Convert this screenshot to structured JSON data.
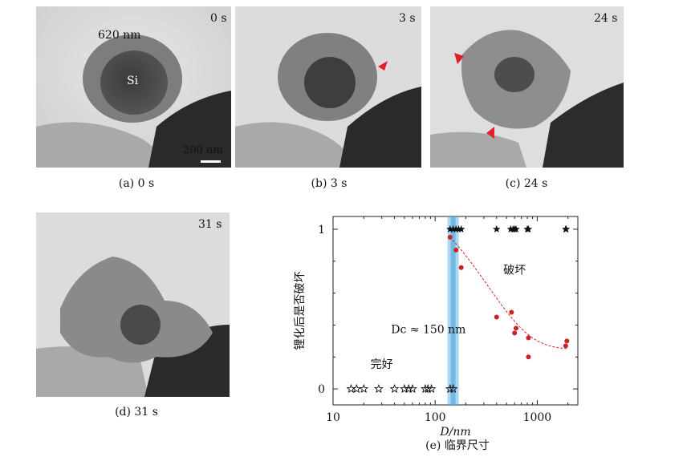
{
  "panels": {
    "a": {
      "time": "0 s",
      "caption": "(a) 0 s",
      "size_label": "620 nm",
      "material_label": "Si",
      "scale_label": "200 nm"
    },
    "b": {
      "time": "3 s",
      "caption": "(b) 3 s"
    },
    "c": {
      "time": "24 s",
      "caption": "(c) 24 s"
    },
    "d": {
      "time": "31 s",
      "caption": "(d) 31 s"
    }
  },
  "colors": {
    "arrow": "#e0202a",
    "fit_points": "#cc2222",
    "critical_band": "#4aa6e0"
  },
  "chart_data": {
    "type": "scatter",
    "caption": "(e) 临界尺寸",
    "xlabel": "D/nm",
    "ylabel": "锂化后是否破坏",
    "x_scale": "log",
    "xlim": [
      10,
      2500
    ],
    "ylim": [
      -0.1,
      1.08
    ],
    "xticks": [
      10,
      100,
      1000
    ],
    "xtick_labels": [
      "10",
      "100",
      "1000"
    ],
    "yticks": [
      0,
      1
    ],
    "ytick_labels": [
      "0",
      "1"
    ],
    "grid": false,
    "critical_size": 150,
    "critical_label": "Dc ≈ 150 nm",
    "region_labels": {
      "fractured": "破坏",
      "intact": "完好"
    },
    "series": [
      {
        "name": "破坏",
        "marker": "filled-star",
        "x": [
          140,
          150,
          160,
          170,
          180,
          400,
          550,
          580,
          600,
          620,
          800,
          820,
          1900,
          1920
        ],
        "y": [
          1,
          1,
          1,
          1,
          1,
          1,
          1,
          1,
          1,
          1,
          1,
          1,
          1,
          1
        ]
      },
      {
        "name": "完好",
        "marker": "open-star",
        "x": [
          15,
          17,
          20,
          28,
          40,
          50,
          55,
          60,
          80,
          85,
          92,
          140,
          150
        ],
        "y": [
          0,
          0,
          0,
          0,
          0,
          0,
          0,
          0,
          0,
          0,
          0,
          0,
          0
        ]
      },
      {
        "marker": "dot",
        "x": [
          140,
          160,
          180,
          400,
          560,
          600,
          620,
          820,
          820,
          1900,
          1950
        ],
        "y": [
          0.95,
          0.87,
          0.76,
          0.45,
          0.48,
          0.35,
          0.38,
          0.32,
          0.2,
          0.27,
          0.3
        ]
      }
    ]
  }
}
